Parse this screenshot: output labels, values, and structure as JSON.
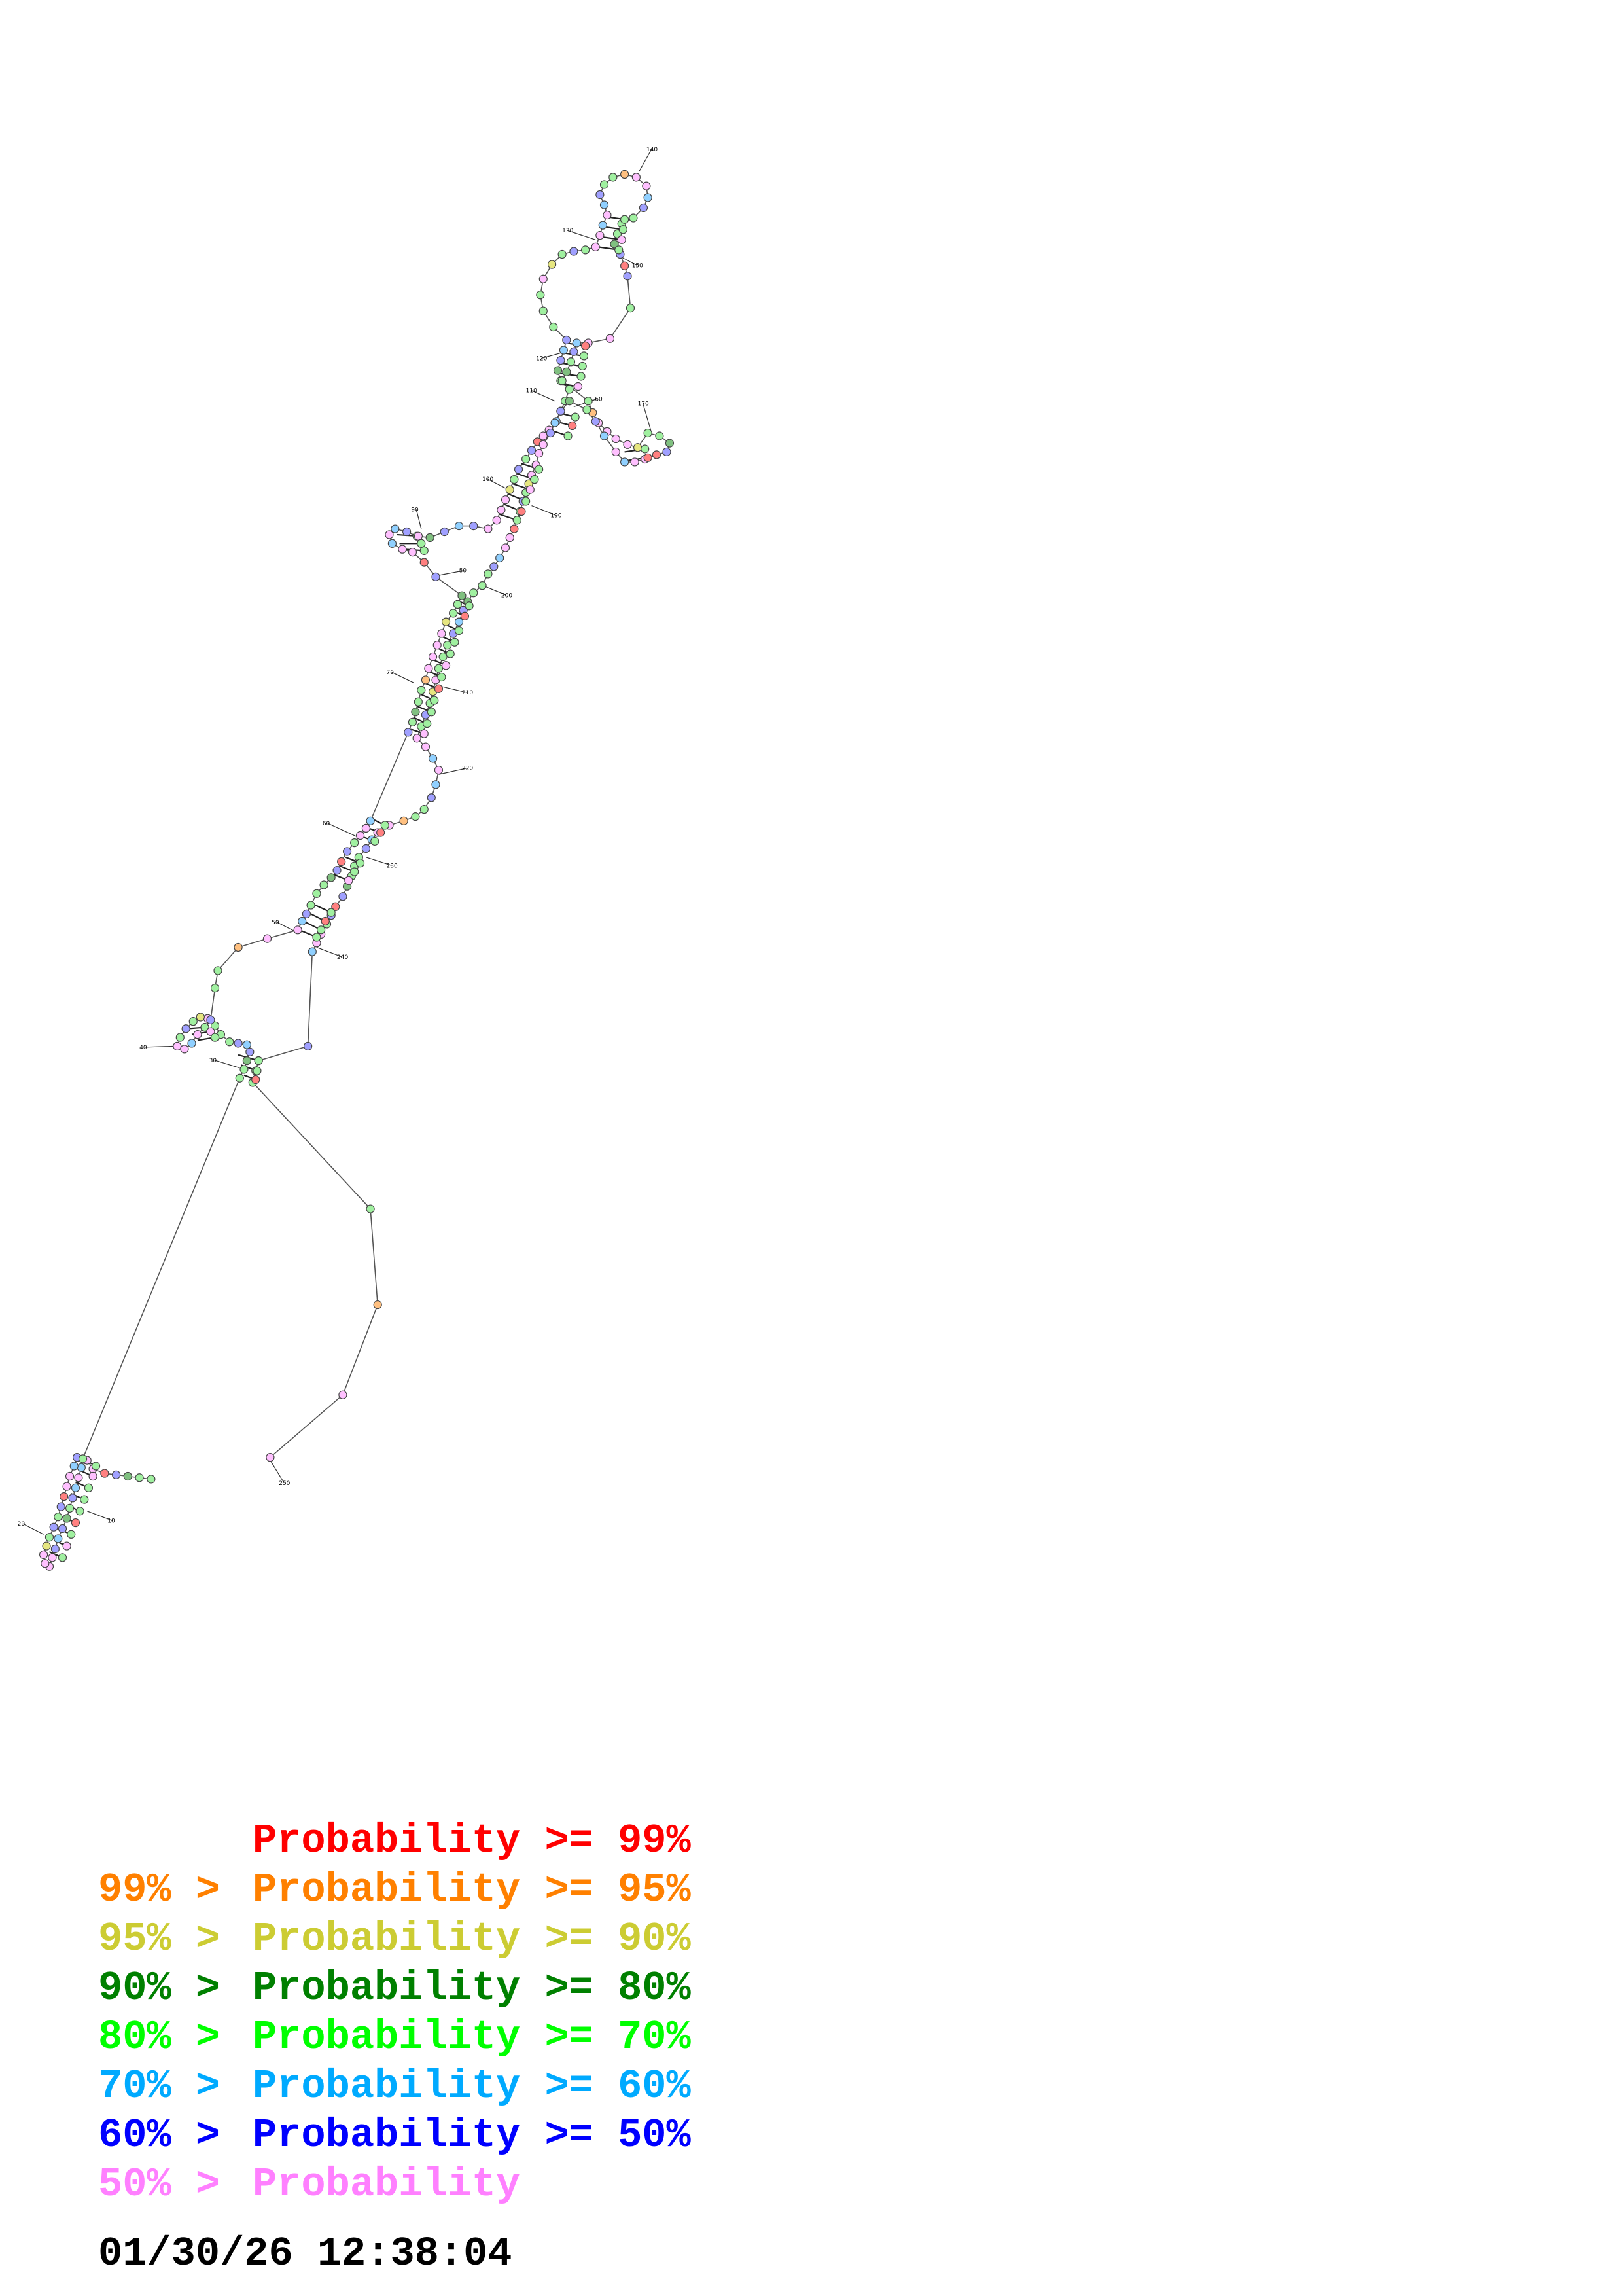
{
  "structure_numbers": [
    "10",
    "20",
    "30",
    "40",
    "50",
    "60",
    "70",
    "80",
    "90",
    "100",
    "110",
    "120",
    "130",
    "140",
    "150",
    "160",
    "170",
    "190",
    "200",
    "210",
    "220",
    "230",
    "240",
    "250"
  ],
  "legend": [
    {
      "lead": "",
      "label": "Probability >= 99%",
      "color": "#ff0000"
    },
    {
      "lead": "99% > ",
      "label": "Probability >= 95%",
      "color": "#ff8000"
    },
    {
      "lead": "95% > ",
      "label": "Probability >= 90%",
      "color": "#cccc33"
    },
    {
      "lead": "90% > ",
      "label": "Probability >= 80%",
      "color": "#008000"
    },
    {
      "lead": "80% > ",
      "label": "Probability >= 70%",
      "color": "#00ff00"
    },
    {
      "lead": "70% > ",
      "label": "Probability >= 60%",
      "color": "#00aaff"
    },
    {
      "lead": "60% > ",
      "label": "Probability >= 50%",
      "color": "#0000ff"
    },
    {
      "lead": "50% > ",
      "label": "Probability",
      "color": "#ff80ff"
    }
  ],
  "timestamp": "01/30/26 12:38:04",
  "nucleotide_fill_colors": {
    "red": "#ff8080",
    "orange": "#ffc080",
    "yellow": "#e6e680",
    "dark_green": "#80c080",
    "green": "#a0f0a0",
    "cyan": "#90d0ff",
    "blue": "#a0a0ff",
    "pink": "#ffc0ff"
  }
}
